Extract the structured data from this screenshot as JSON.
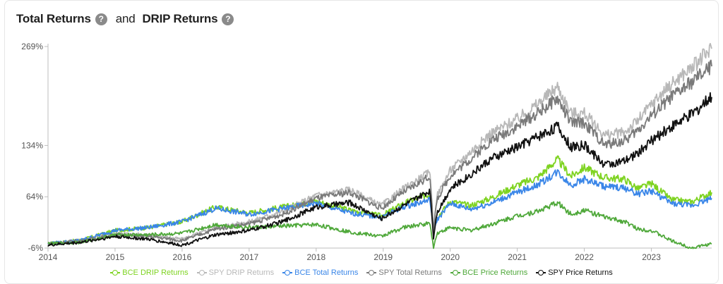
{
  "header": {
    "title_a": "Total Returns",
    "title_sep": "and",
    "title_b": "DRIP Returns",
    "help_glyph": "?"
  },
  "chart_data": {
    "type": "line",
    "title": "Total Returns and DRIP Returns",
    "xlabel": "",
    "ylabel": "",
    "x_range": [
      2014.0,
      2023.9
    ],
    "ylim": [
      -6,
      269
    ],
    "y_ticks": [
      -6,
      64,
      134,
      269
    ],
    "y_tick_labels": [
      "-6%",
      "64%",
      "134%",
      "269%"
    ],
    "x_ticks": [
      2014,
      2015,
      2016,
      2017,
      2018,
      2019,
      2020,
      2021,
      2022,
      2023
    ],
    "x_tick_labels": [
      "2014",
      "2015",
      "2016",
      "2017",
      "2018",
      "2019",
      "2020",
      "2021",
      "2022",
      "2023"
    ],
    "grid": false,
    "legend_position": "bottom",
    "x": [
      2014.0,
      2014.5,
      2015.0,
      2015.5,
      2016.0,
      2016.5,
      2017.0,
      2017.5,
      2018.0,
      2018.5,
      2018.97,
      2019.3,
      2019.7,
      2019.75,
      2019.8,
      2020.0,
      2020.3,
      2020.6,
      2021.0,
      2021.3,
      2021.6,
      2021.8,
      2022.0,
      2022.3,
      2022.6,
      2022.8,
      2023.0,
      2023.3,
      2023.6,
      2023.9
    ],
    "series": [
      {
        "name": "BCE DRIP Returns",
        "color": "#7ed321",
        "values": [
          0,
          5,
          18,
          22,
          30,
          50,
          42,
          50,
          58,
          46,
          38,
          55,
          68,
          20,
          35,
          58,
          52,
          62,
          80,
          90,
          115,
          92,
          104,
          90,
          88,
          75,
          82,
          60,
          57,
          70
        ]
      },
      {
        "name": "SPY DRIP Returns",
        "color": "#b8b8b8",
        "values": [
          0,
          5,
          14,
          12,
          6,
          22,
          30,
          44,
          66,
          74,
          52,
          75,
          98,
          18,
          65,
          100,
          125,
          150,
          170,
          190,
          214,
          178,
          178,
          148,
          152,
          168,
          190,
          218,
          240,
          266
        ]
      },
      {
        "name": "BCE Total Returns",
        "color": "#3a86e8",
        "values": [
          0,
          5,
          18,
          22,
          30,
          48,
          40,
          48,
          55,
          42,
          36,
          50,
          60,
          18,
          32,
          55,
          47,
          55,
          70,
          80,
          98,
          80,
          88,
          78,
          76,
          68,
          72,
          55,
          52,
          62
        ]
      },
      {
        "name": "SPY Total Returns",
        "color": "#7a7a7a",
        "values": [
          0,
          4,
          12,
          10,
          4,
          20,
          27,
          40,
          62,
          70,
          48,
          70,
          92,
          16,
          60,
          93,
          115,
          140,
          160,
          178,
          198,
          165,
          165,
          135,
          140,
          155,
          175,
          200,
          220,
          242
        ]
      },
      {
        "name": "BCE Price Returns",
        "color": "#4fa83a",
        "values": [
          0,
          2,
          12,
          12,
          14,
          26,
          22,
          24,
          26,
          16,
          10,
          22,
          28,
          -6,
          14,
          22,
          18,
          26,
          38,
          44,
          56,
          40,
          46,
          36,
          30,
          20,
          18,
          4,
          -6,
          0
        ]
      },
      {
        "name": "SPY Price Returns",
        "color": "#111111",
        "values": [
          -2,
          2,
          10,
          6,
          -2,
          12,
          18,
          30,
          50,
          56,
          34,
          52,
          72,
          8,
          42,
          75,
          94,
          115,
          132,
          146,
          160,
          132,
          134,
          108,
          112,
          124,
          140,
          160,
          176,
          200
        ]
      }
    ]
  }
}
